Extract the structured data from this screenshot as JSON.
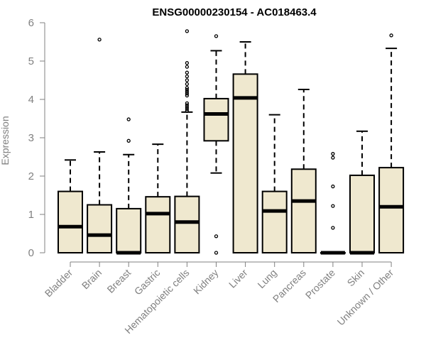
{
  "chart_data": {
    "type": "boxplot",
    "title": "ENSG00000230154 - AC018463.4",
    "ylabel": "Expression",
    "ylim": [
      0,
      6
    ],
    "yticks": [
      0,
      1,
      2,
      3,
      4,
      5,
      6
    ],
    "grid": false,
    "box_fill": "#efe8cf",
    "box_stroke": "#000000",
    "axis_color": "#808080",
    "categories": [
      "Bladder",
      "Brain",
      "Breast",
      "Gastric",
      "Hematopoietic cells",
      "Kidney",
      "Liver",
      "Lung",
      "Pancreas",
      "Prostate",
      "Skin",
      "Unknown / Other"
    ],
    "boxes": [
      {
        "category": "Bladder",
        "whisker_low": 0,
        "q1": 0,
        "median": 0.68,
        "q3": 1.6,
        "whisker_high": 2.42,
        "outliers": []
      },
      {
        "category": "Brain",
        "whisker_low": 0,
        "q1": 0,
        "median": 0.46,
        "q3": 1.25,
        "whisker_high": 2.63,
        "outliers": [
          5.56
        ]
      },
      {
        "category": "Breast",
        "whisker_low": 0,
        "q1": 0,
        "median": 0.0,
        "q3": 1.15,
        "whisker_high": 2.56,
        "outliers": [
          2.92,
          3.48
        ]
      },
      {
        "category": "Gastric",
        "whisker_low": 0,
        "q1": 0,
        "median": 1.02,
        "q3": 1.46,
        "whisker_high": 2.83,
        "outliers": []
      },
      {
        "category": "Hematopoietic cells",
        "whisker_low": 0,
        "q1": 0,
        "median": 0.8,
        "q3": 1.47,
        "whisker_high": 3.67,
        "outliers": [
          3.7,
          3.75,
          3.8,
          3.85,
          3.9,
          4.1,
          4.15,
          4.2,
          4.25,
          4.3,
          4.4,
          4.5,
          4.6,
          4.7,
          4.85,
          4.95,
          5.78
        ]
      },
      {
        "category": "Kidney",
        "whisker_low": 2.08,
        "q1": 2.92,
        "median": 3.62,
        "q3": 4.02,
        "whisker_high": 5.27,
        "outliers": [
          0.0,
          0.43,
          5.65
        ]
      },
      {
        "category": "Liver",
        "whisker_low": 0,
        "q1": 0,
        "median": 4.04,
        "q3": 4.66,
        "whisker_high": 5.5,
        "outliers": []
      },
      {
        "category": "Lung",
        "whisker_low": 0,
        "q1": 0,
        "median": 1.09,
        "q3": 1.6,
        "whisker_high": 3.6,
        "outliers": []
      },
      {
        "category": "Pancreas",
        "whisker_low": 0,
        "q1": 0,
        "median": 1.35,
        "q3": 2.18,
        "whisker_high": 4.26,
        "outliers": []
      },
      {
        "category": "Prostate",
        "whisker_low": 0,
        "q1": 0,
        "median": 0.0,
        "q3": 0.0,
        "whisker_high": 0.0,
        "outliers": [
          0.65,
          1.22,
          1.73,
          2.48,
          2.58
        ]
      },
      {
        "category": "Skin",
        "whisker_low": 0,
        "q1": 0,
        "median": 0.0,
        "q3": 2.02,
        "whisker_high": 3.17,
        "outliers": []
      },
      {
        "category": "Unknown / Other",
        "whisker_low": 0,
        "q1": 0,
        "median": 1.2,
        "q3": 2.22,
        "whisker_high": 5.33,
        "outliers": [
          5.67
        ]
      }
    ]
  }
}
